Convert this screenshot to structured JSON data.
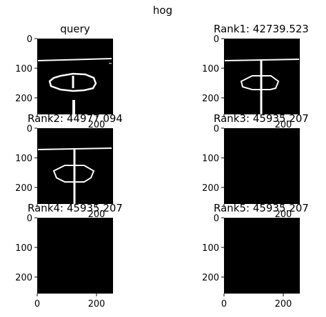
{
  "figure": {
    "suptitle": "hog",
    "panels": [
      {
        "id": "query",
        "title": "query",
        "blank": false
      },
      {
        "id": "rank1",
        "title": "Rank1: 42739.523",
        "blank": false
      },
      {
        "id": "rank2",
        "title": "Rank2: 44977.094",
        "blank": false
      },
      {
        "id": "rank3",
        "title": "Rank3: 45935.207",
        "blank": true
      },
      {
        "id": "rank4",
        "title": "Rank4: 45935.207",
        "blank": true
      },
      {
        "id": "rank5",
        "title": "Rank5: 45935.207",
        "blank": true
      }
    ],
    "y_ticks": [
      "0",
      "100",
      "200"
    ],
    "x_ticks": [
      "0",
      "200"
    ],
    "image_color": "#000000",
    "stroke_color": "#ffffff"
  }
}
